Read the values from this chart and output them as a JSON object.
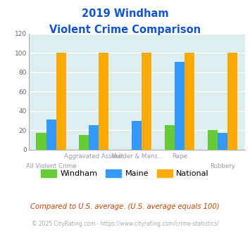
{
  "title_line1": "2019 Windham",
  "title_line2": "Violent Crime Comparison",
  "label_row1": [
    "",
    "Aggravated Assault",
    "Murder & Mans...",
    "Rape",
    ""
  ],
  "label_row2": [
    "All Violent Crime",
    "",
    "",
    "",
    "Robbery"
  ],
  "windham": [
    17,
    15,
    0,
    25,
    20
  ],
  "maine": [
    31,
    25,
    30,
    91,
    17
  ],
  "national": [
    100,
    100,
    100,
    100,
    100
  ],
  "colors": {
    "windham": "#66cc33",
    "maine": "#3399ff",
    "national": "#ffaa00"
  },
  "ylim": [
    0,
    120
  ],
  "yticks": [
    0,
    20,
    40,
    60,
    80,
    100,
    120
  ],
  "bg_color": "#dceef0",
  "fig_bg": "#ffffff",
  "title_color": "#1155cc",
  "label_color": "#9999aa",
  "footer_text": "Compared to U.S. average. (U.S. average equals 100)",
  "copyright_text": "© 2025 CityRating.com - https://www.cityrating.com/crime-statistics/",
  "footer_color": "#cc4400",
  "copyright_color": "#aaaaaa"
}
